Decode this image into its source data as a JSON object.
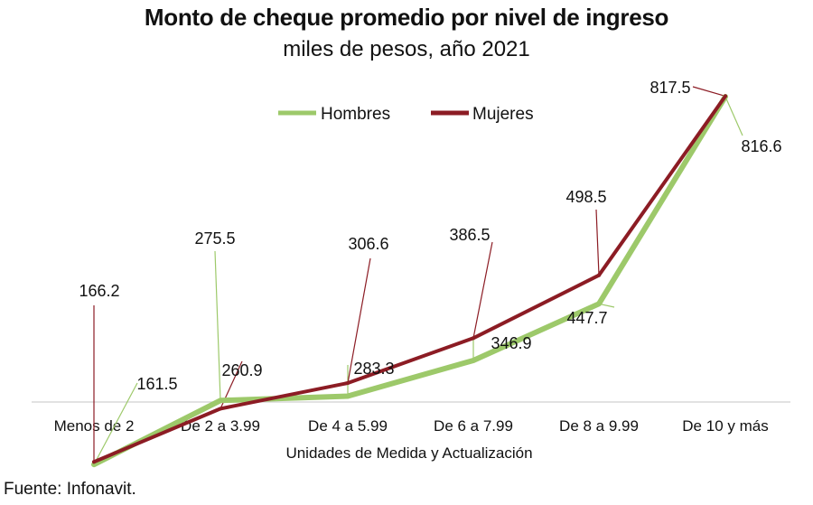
{
  "chart_data": {
    "type": "line",
    "title": "Monto de cheque promedio por nivel de ingreso",
    "subtitle": "miles de pesos, año 2021",
    "xlabel": "Unidades de Medida y Actualización",
    "ylabel": "",
    "categories": [
      "Menos de 2",
      "De 2 a 3.99",
      "De 4 a 5.99",
      "De 6 a 7.99",
      "De 8 a 9.99",
      "De 10 y más"
    ],
    "series": [
      {
        "name": "Hombres",
        "color": "#9DC96A",
        "values": [
          161.5,
          275.5,
          283.3,
          346.9,
          447.7,
          816.6
        ],
        "labels": [
          "161.5",
          "275.5",
          "283.3",
          "346.9",
          "447.7",
          "816.6"
        ]
      },
      {
        "name": "Mujeres",
        "color": "#8C1C24",
        "values": [
          166.2,
          260.9,
          306.6,
          386.5,
          498.5,
          817.5
        ],
        "labels": [
          "166.2",
          "260.9",
          "306.6",
          "386.5",
          "498.5",
          "817.5"
        ]
      }
    ],
    "ylim": [
      120,
      860
    ],
    "grid": false,
    "legend": "top-center"
  },
  "source": "Fuente: Infonavit."
}
